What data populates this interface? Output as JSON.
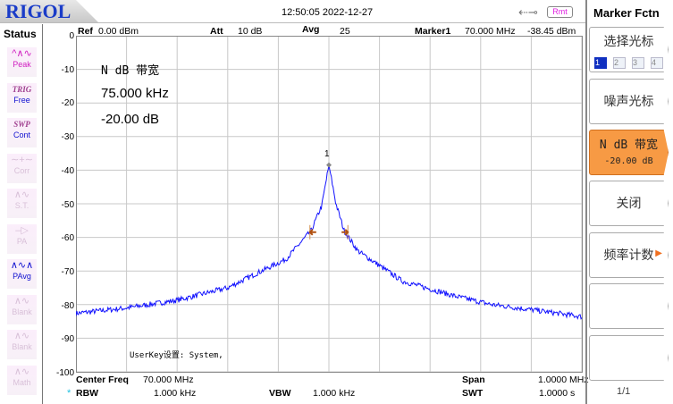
{
  "header": {
    "logo": "RIGOL",
    "time": "12:50:05 2022-12-27",
    "remote_badge": "Rmt",
    "usb_icon": "usb-icon"
  },
  "status": {
    "title": "Status",
    "items": [
      {
        "top": "",
        "label": "Peak",
        "icon": "peak-icon",
        "active": true
      },
      {
        "top": "TRIG",
        "label": "Free",
        "icon": "",
        "active": true
      },
      {
        "top": "SWP",
        "label": "Cont",
        "icon": "",
        "active": true
      },
      {
        "top": "",
        "label": "Corr",
        "icon": "correction-icon",
        "active": false
      },
      {
        "top": "",
        "label": "S.T.",
        "icon": "signal-track-icon",
        "active": false
      },
      {
        "top": "",
        "label": "PA",
        "icon": "preamp-icon",
        "active": false
      },
      {
        "top": "",
        "label": "PAvg",
        "icon": "power-avg-icon",
        "active": true
      },
      {
        "top": "",
        "label": "Blank",
        "icon": "trace-icon",
        "active": false
      },
      {
        "top": "",
        "label": "Blank",
        "icon": "trace-icon",
        "active": false
      },
      {
        "top": "",
        "label": "Math",
        "icon": "math-icon",
        "active": false
      }
    ]
  },
  "measure": {
    "ref_label": "Ref",
    "ref_value": "0.00 dBm",
    "att_label": "Att",
    "att_value": "10 dB",
    "avg_label": "Avg",
    "avg_value": "25",
    "marker_label": "Marker1",
    "marker_freq": "70.000 MHz",
    "marker_level": "-38.45 dBm"
  },
  "annotation": {
    "title": "N dB 带宽",
    "bandwidth": "75.000 kHz",
    "ndb": "-20.00 dB",
    "userkey": "UserKey设置:  System,",
    "marker_number": "1"
  },
  "footer": {
    "center_label": "Center Freq",
    "center_value": "70.000 MHz",
    "span_label": "Span",
    "span_value": "1.0000 MHz",
    "rbw_star": "*",
    "rbw_label": "RBW",
    "rbw_value": "1.000 kHz",
    "vbw_label": "VBW",
    "vbw_value": "1.000 kHz",
    "swt_label": "SWT",
    "swt_value": "1.0000 s"
  },
  "panel": {
    "title": "Marker Fctn",
    "select_marker": "选择光标",
    "marker_numbers": [
      "1",
      "2",
      "3",
      "4"
    ],
    "noise_marker": "噪声光标",
    "ndb_bw": "N dB 带宽",
    "ndb_value": "-20.00 dB",
    "close": "关闭",
    "freq_count": "频率计数",
    "page": "1/1"
  },
  "colors": {
    "trace": "#1010ff",
    "marker": "#b05010",
    "active_softkey": "#f79a44",
    "brand": "#1a3cc8"
  },
  "chart_data": {
    "type": "line",
    "x_unit": "kHz offset from 70.000 MHz",
    "xlim": [
      -500,
      500
    ],
    "ylim": [
      -100,
      0
    ],
    "yticks": [
      "0",
      "-10",
      "-20",
      "-30",
      "-40",
      "-50",
      "-60",
      "-70",
      "-80",
      "-90",
      "-100"
    ],
    "grid": true,
    "series": [
      {
        "x": [
          -500,
          -400,
          -300,
          -200,
          -140,
          -85,
          -35,
          -14,
          0,
          14,
          30,
          57,
          145,
          250,
          322,
          400,
          500
        ],
        "y": [
          -82.6,
          -81,
          -78.7,
          -75,
          -70.5,
          -66.5,
          -58,
          -50.5,
          -38.45,
          -50,
          -58,
          -64,
          -73,
          -77.5,
          -80,
          -81.5,
          -83.6
        ]
      }
    ],
    "ndb_markers": [
      {
        "x": -37.5,
        "y": -58.45
      },
      {
        "x": 37.5,
        "y": -58.45
      }
    ]
  }
}
